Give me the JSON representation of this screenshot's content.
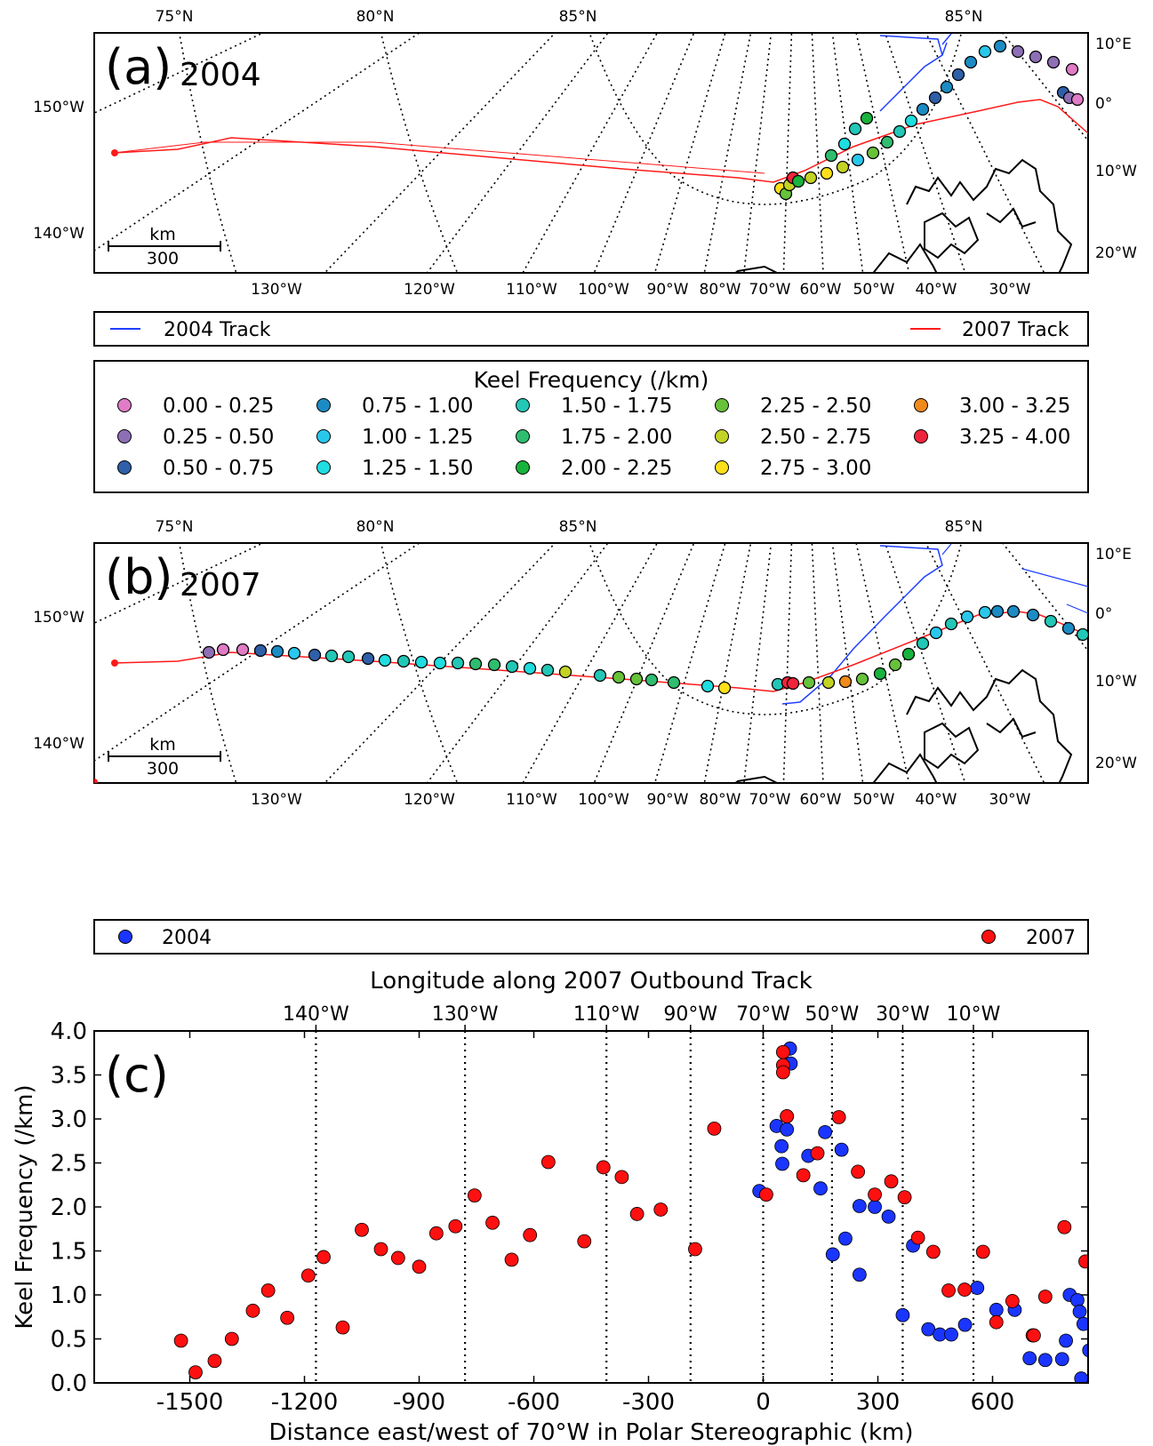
{
  "panel_a": {
    "label": "(a)",
    "year": "2004",
    "top_lat_labels": [
      "75°N",
      "80°N",
      "85°N",
      "85°N"
    ],
    "left_lon_labels": [
      "150°W",
      "140°W"
    ],
    "right_lon_labels": [
      "10°E",
      "0°",
      "10°W",
      "20°W"
    ],
    "bottom_lon_labels": [
      "130°W",
      "120°W",
      "110°W",
      "100°W",
      "90°W",
      "80°W",
      "70°W",
      "60°W",
      "50°W",
      "40°W",
      "30°W"
    ],
    "scale_unit": "km",
    "scale_value": "300"
  },
  "panel_b": {
    "label": "(b)",
    "year": "2007",
    "top_lat_labels": [
      "75°N",
      "80°N",
      "85°N",
      "85°N"
    ],
    "left_lon_labels": [
      "150°W",
      "140°W"
    ],
    "right_lon_labels": [
      "10°E",
      "0°",
      "10°W",
      "20°W"
    ],
    "bottom_lon_labels": [
      "130°W",
      "120°W",
      "110°W",
      "100°W",
      "90°W",
      "80°W",
      "70°W",
      "60°W",
      "50°W",
      "40°W",
      "30°W"
    ],
    "scale_unit": "km",
    "scale_value": "300"
  },
  "track_legend": {
    "items": [
      {
        "label": "2004 Track",
        "color": "#1f3fff"
      },
      {
        "label": "2007 Track",
        "color": "#ff1a1a"
      }
    ]
  },
  "keel_legend": {
    "title": "Keel Frequency (/km)",
    "bins": [
      {
        "label": "0.00 - 0.25",
        "color": "#e07bc6"
      },
      {
        "label": "0.25 - 0.50",
        "color": "#8e6fb5"
      },
      {
        "label": "0.50 - 0.75",
        "color": "#2f5fa8"
      },
      {
        "label": "0.75 - 1.00",
        "color": "#1c8bc4"
      },
      {
        "label": "1.00 - 1.25",
        "color": "#28c8ec"
      },
      {
        "label": "1.25 - 1.50",
        "color": "#1fdde0"
      },
      {
        "label": "1.50 - 1.75",
        "color": "#22c7b6"
      },
      {
        "label": "1.75 - 2.00",
        "color": "#2fbd6f"
      },
      {
        "label": "2.00 - 2.25",
        "color": "#17b33c"
      },
      {
        "label": "2.25 - 2.50",
        "color": "#67c23a"
      },
      {
        "label": "2.50 - 2.75",
        "color": "#c3d324"
      },
      {
        "label": "2.75 - 3.00",
        "color": "#ffe01a"
      },
      {
        "label": "3.00 - 3.25",
        "color": "#f08a1c"
      },
      {
        "label": "3.25 - 4.00",
        "color": "#f0233c"
      }
    ]
  },
  "chart_legend": {
    "items": [
      {
        "label": "2004",
        "color": "#1a35ff"
      },
      {
        "label": "2007",
        "color": "#ff1010"
      }
    ]
  },
  "chart_data": {
    "type": "scatter",
    "label": "(c)",
    "title": "Longitude along 2007 Outbound Track",
    "xlabel": "Distance east/west of 70°W in Polar Stereographic (km)",
    "ylabel": "Keel Frequency (/km)",
    "xlim": [
      -1750,
      850
    ],
    "ylim": [
      0,
      4
    ],
    "x_ticks": [
      -1500,
      -1200,
      -900,
      -600,
      -300,
      0,
      300,
      600
    ],
    "x_tick_labels": [
      "-1500",
      "-1200",
      "-900",
      "-600",
      "-300",
      "0",
      "300",
      "600"
    ],
    "y_ticks": [
      0,
      0.5,
      1,
      1.5,
      2,
      2.5,
      3,
      3.5,
      4
    ],
    "y_tick_labels": [
      "0.0",
      "0.5",
      "1.0",
      "1.5",
      "2.0",
      "2.5",
      "3.0",
      "3.5",
      "4.0"
    ],
    "top_axis": {
      "positions": [
        -1170,
        -780,
        -410,
        -190,
        0,
        180,
        365,
        550
      ],
      "labels": [
        "140°W",
        "130°W",
        "110°W",
        "90°W",
        "70°W",
        "50°W",
        "30°W",
        "10°W"
      ]
    },
    "grid": "vertical dotted lines at top-axis longitudes",
    "legend_position": "top",
    "series": [
      {
        "name": "2004",
        "color": "#1a35ff",
        "points": [
          [
            -10,
            2.18
          ],
          [
            35,
            2.92
          ],
          [
            48,
            2.69
          ],
          [
            50,
            2.49
          ],
          [
            62,
            2.88
          ],
          [
            70,
            3.8
          ],
          [
            72,
            3.63
          ],
          [
            118,
            2.58
          ],
          [
            150,
            2.21
          ],
          [
            162,
            2.85
          ],
          [
            182,
            1.46
          ],
          [
            205,
            2.65
          ],
          [
            215,
            1.64
          ],
          [
            252,
            2.01
          ],
          [
            252,
            1.23
          ],
          [
            292,
            2.0
          ],
          [
            328,
            1.89
          ],
          [
            365,
            0.77
          ],
          [
            392,
            1.56
          ],
          [
            432,
            0.61
          ],
          [
            462,
            0.55
          ],
          [
            492,
            0.55
          ],
          [
            528,
            0.66
          ],
          [
            560,
            1.08
          ],
          [
            610,
            0.83
          ],
          [
            658,
            0.83
          ],
          [
            697,
            0.28
          ],
          [
            738,
            0.26
          ],
          [
            782,
            0.27
          ],
          [
            792,
            0.48
          ],
          [
            802,
            1.0
          ],
          [
            822,
            0.94
          ],
          [
            828,
            0.81
          ],
          [
            838,
            0.67
          ],
          [
            832,
            0.05
          ],
          [
            853,
            0.37
          ]
        ]
      },
      {
        "name": "2007",
        "color": "#ff1010",
        "points": [
          [
            -1523,
            0.48
          ],
          [
            -1485,
            0.12
          ],
          [
            -1435,
            0.25
          ],
          [
            -1390,
            0.5
          ],
          [
            -1335,
            0.82
          ],
          [
            -1295,
            1.05
          ],
          [
            -1245,
            0.74
          ],
          [
            -1190,
            1.22
          ],
          [
            -1150,
            1.43
          ],
          [
            -1100,
            0.63
          ],
          [
            -1050,
            1.74
          ],
          [
            -1000,
            1.52
          ],
          [
            -955,
            1.42
          ],
          [
            -900,
            1.32
          ],
          [
            -855,
            1.7
          ],
          [
            -805,
            1.78
          ],
          [
            -755,
            2.13
          ],
          [
            -708,
            1.82
          ],
          [
            -658,
            1.4
          ],
          [
            -610,
            1.68
          ],
          [
            -562,
            2.51
          ],
          [
            -468,
            1.61
          ],
          [
            -418,
            2.45
          ],
          [
            -370,
            2.34
          ],
          [
            -330,
            1.92
          ],
          [
            -268,
            1.97
          ],
          [
            -178,
            1.52
          ],
          [
            -128,
            2.89
          ],
          [
            8,
            2.14
          ],
          [
            52,
            3.76
          ],
          [
            52,
            3.61
          ],
          [
            52,
            3.53
          ],
          [
            62,
            3.03
          ],
          [
            62,
            3.03
          ],
          [
            105,
            2.36
          ],
          [
            142,
            2.61
          ],
          [
            198,
            3.02
          ],
          [
            248,
            2.4
          ],
          [
            292,
            2.14
          ],
          [
            335,
            2.29
          ],
          [
            370,
            2.11
          ],
          [
            405,
            1.65
          ],
          [
            445,
            1.49
          ],
          [
            485,
            1.05
          ],
          [
            527,
            1.06
          ],
          [
            575,
            1.49
          ],
          [
            610,
            0.69
          ],
          [
            652,
            0.93
          ],
          [
            705,
            0.54
          ],
          [
            738,
            0.98
          ],
          [
            788,
            1.77
          ],
          [
            708,
            0.54
          ],
          [
            843,
            1.38
          ]
        ]
      }
    ]
  }
}
